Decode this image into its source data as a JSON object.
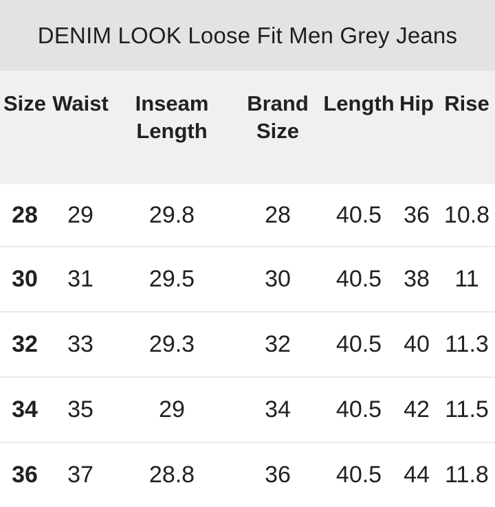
{
  "title": "DENIM LOOK Loose Fit Men Grey Jeans",
  "size_chart": {
    "type": "table",
    "columns": [
      "Size",
      "Waist",
      "Inseam Length",
      "Brand Size",
      "Length",
      "Hip",
      "Rise"
    ],
    "rows": [
      [
        "28",
        "29",
        "29.8",
        "28",
        "40.5",
        "36",
        "10.8"
      ],
      [
        "30",
        "31",
        "29.5",
        "30",
        "40.5",
        "38",
        "11"
      ],
      [
        "32",
        "33",
        "29.3",
        "32",
        "40.5",
        "40",
        "11.3"
      ],
      [
        "34",
        "35",
        "29",
        "34",
        "40.5",
        "42",
        "11.5"
      ],
      [
        "36",
        "37",
        "28.8",
        "36",
        "40.5",
        "44",
        "11.8"
      ]
    ]
  },
  "colors": {
    "title_bar_bg": "#e3e3e3",
    "header_bg": "#f0f0f0",
    "row_bg": "#ffffff",
    "divider": "#e9e9e9",
    "text": "#212121"
  }
}
